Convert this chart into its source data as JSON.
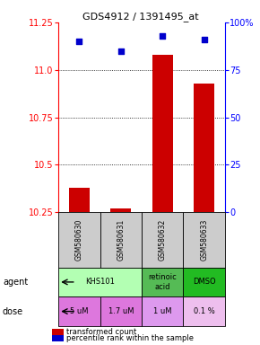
{
  "title": "GDS4912 / 1391495_at",
  "samples": [
    "GSM580630",
    "GSM580631",
    "GSM580632",
    "GSM580633"
  ],
  "bar_values": [
    10.38,
    10.27,
    11.08,
    10.93
  ],
  "dot_values": [
    90,
    85,
    93,
    91
  ],
  "ylim_left": [
    10.25,
    11.25
  ],
  "ylim_right": [
    0,
    100
  ],
  "yticks_left": [
    10.25,
    10.5,
    10.75,
    11.0,
    11.25
  ],
  "yticks_right": [
    0,
    25,
    50,
    75,
    100
  ],
  "bar_color": "#cc0000",
  "dot_color": "#0000cc",
  "agent_groups": [
    {
      "label": "KHS101",
      "start": 0,
      "end": 1,
      "color": "#b3ffb3"
    },
    {
      "label": "retinoic\nacid",
      "start": 2,
      "end": 2,
      "color": "#55bb55"
    },
    {
      "label": "DMSO",
      "start": 3,
      "end": 3,
      "color": "#22bb22"
    }
  ],
  "dose_labels": [
    "5 uM",
    "1.7 uM",
    "1 uM",
    "0.1 %"
  ],
  "dose_colors": [
    "#dd77dd",
    "#dd77dd",
    "#dd99ee",
    "#eebfee"
  ],
  "sample_bg_color": "#cccccc",
  "legend_bar_label": "transformed count",
  "legend_dot_label": "percentile rank within the sample",
  "agent_row_label": "agent",
  "dose_row_label": "dose",
  "title_fontsize": 8,
  "tick_fontsize": 7,
  "label_fontsize": 6.5
}
